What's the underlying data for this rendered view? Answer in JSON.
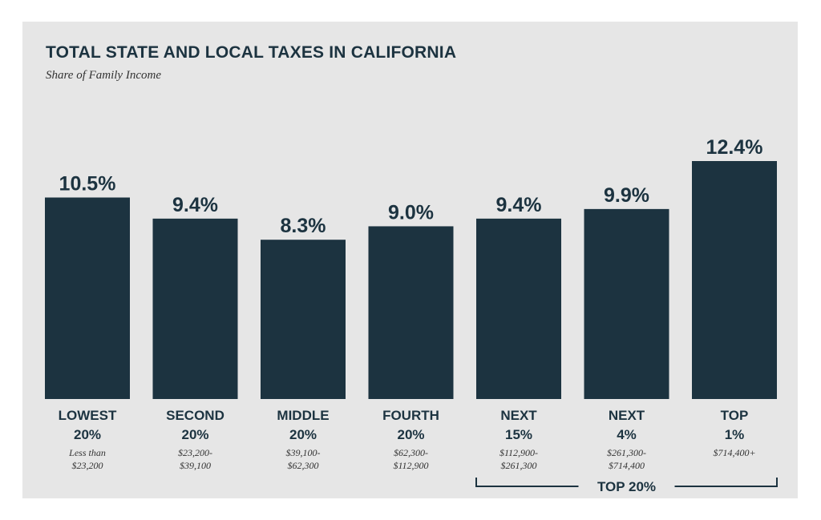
{
  "chart_data": {
    "type": "bar",
    "title": "TOTAL STATE AND LOCAL TAXES IN CALIFORNIA",
    "subtitle": "Share of Family Income",
    "unit": "%",
    "ylim": [
      0,
      12.4
    ],
    "categories": [
      {
        "name": [
          "LOWEST",
          "20%"
        ],
        "range": [
          "Less than",
          "$23,200"
        ],
        "value": 10.5,
        "label": "10.5%"
      },
      {
        "name": [
          "SECOND",
          "20%"
        ],
        "range": [
          "$23,200-",
          "$39,100"
        ],
        "value": 9.4,
        "label": "9.4%"
      },
      {
        "name": [
          "MIDDLE",
          "20%"
        ],
        "range": [
          "$39,100-",
          "$62,300"
        ],
        "value": 8.3,
        "label": "8.3%"
      },
      {
        "name": [
          "FOURTH",
          "20%"
        ],
        "range": [
          "$62,300-",
          "$112,900"
        ],
        "value": 9.0,
        "label": "9.0%"
      },
      {
        "name": [
          "NEXT",
          "15%"
        ],
        "range": [
          "$112,900-",
          "$261,300"
        ],
        "value": 9.4,
        "label": "9.4%"
      },
      {
        "name": [
          "NEXT",
          "4%"
        ],
        "range": [
          "$261,300-",
          "$714,400"
        ],
        "value": 9.9,
        "label": "9.9%"
      },
      {
        "name": [
          "TOP",
          "1%"
        ],
        "range": [
          "$714,400+"
        ],
        "value": 12.4,
        "label": "12.4%"
      }
    ],
    "group_bracket": {
      "label": "TOP 20%",
      "from_category": 4,
      "to_category": 6
    },
    "colors": {
      "bar": "#1c3340",
      "background": "#e6e6e6"
    }
  }
}
